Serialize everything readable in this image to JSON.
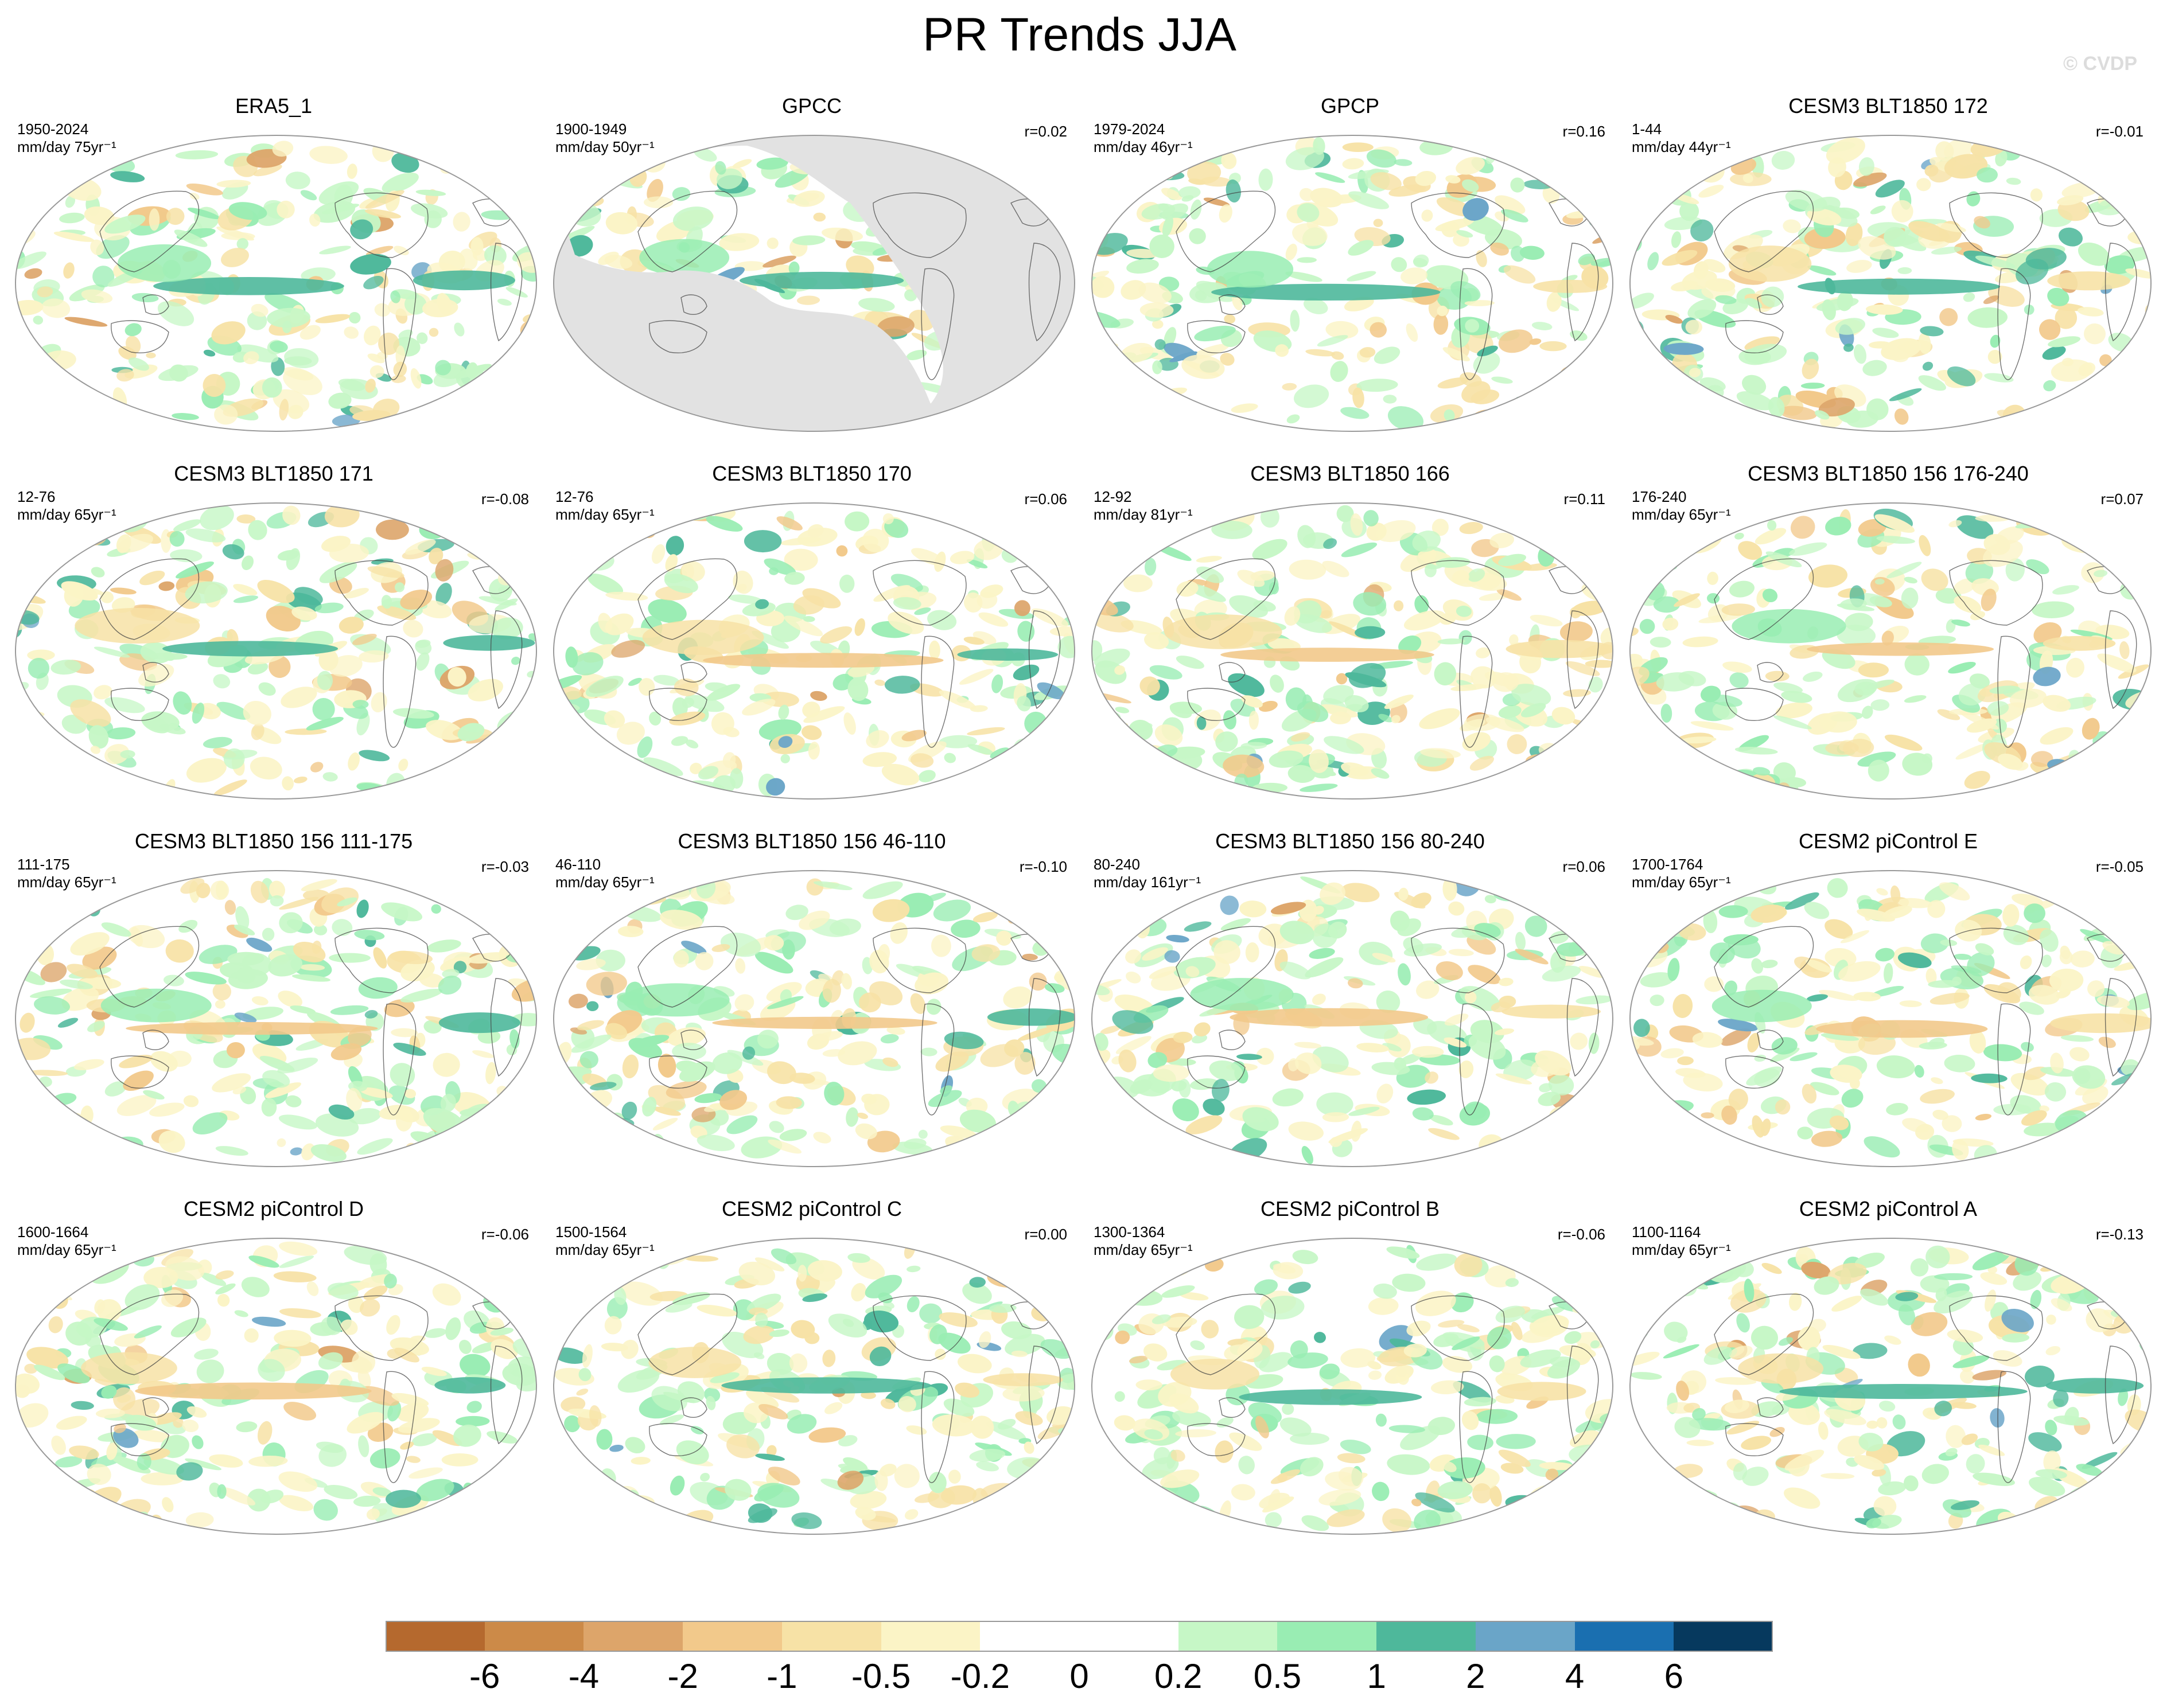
{
  "title": "PR Trends JJA",
  "credit": "© CVDP",
  "colors": {
    "ocean_mask": "#e2e2e2",
    "outline": "#999999",
    "coast": "#444444"
  },
  "panels": [
    {
      "title": "ERA5_1",
      "period": "1950-2024",
      "units": "mm/day 75yr⁻¹",
      "corr": "",
      "masked": false
    },
    {
      "title": "GPCC",
      "period": "1900-1949",
      "units": "mm/day 50yr⁻¹",
      "corr": "r=0.02",
      "masked": true
    },
    {
      "title": "GPCP",
      "period": "1979-2024",
      "units": "mm/day 46yr⁻¹",
      "corr": "r=0.16",
      "masked": false
    },
    {
      "title": "CESM3 BLT1850 172",
      "period": "1-44",
      "units": "mm/day 44yr⁻¹",
      "corr": "r=-0.01",
      "masked": false
    },
    {
      "title": "CESM3 BLT1850 171",
      "period": "12-76",
      "units": "mm/day 65yr⁻¹",
      "corr": "r=-0.08",
      "masked": false
    },
    {
      "title": "CESM3 BLT1850 170",
      "period": "12-76",
      "units": "mm/day 65yr⁻¹",
      "corr": "r=0.06",
      "masked": false
    },
    {
      "title": "CESM3 BLT1850 166",
      "period": "12-92",
      "units": "mm/day 81yr⁻¹",
      "corr": "r=0.11",
      "masked": false
    },
    {
      "title": "CESM3 BLT1850 156 176-240",
      "period": "176-240",
      "units": "mm/day 65yr⁻¹",
      "corr": "r=0.07",
      "masked": false
    },
    {
      "title": "CESM3 BLT1850 156 111-175",
      "period": "111-175",
      "units": "mm/day 65yr⁻¹",
      "corr": "r=-0.03",
      "masked": false
    },
    {
      "title": "CESM3 BLT1850 156 46-110",
      "period": "46-110",
      "units": "mm/day 65yr⁻¹",
      "corr": "r=-0.10",
      "masked": false
    },
    {
      "title": "CESM3 BLT1850 156 80-240",
      "period": "80-240",
      "units": "mm/day 161yr⁻¹",
      "corr": "r=0.06",
      "masked": false
    },
    {
      "title": "CESM2 piControl E",
      "period": "1700-1764",
      "units": "mm/day 65yr⁻¹",
      "corr": "r=-0.05",
      "masked": false
    },
    {
      "title": "CESM2 piControl D",
      "period": "1600-1664",
      "units": "mm/day 65yr⁻¹",
      "corr": "r=-0.06",
      "masked": false
    },
    {
      "title": "CESM2 piControl C",
      "period": "1500-1564",
      "units": "mm/day 65yr⁻¹",
      "corr": "r=0.00",
      "masked": false
    },
    {
      "title": "CESM2 piControl B",
      "period": "1300-1364",
      "units": "mm/day 65yr⁻¹",
      "corr": "r=-0.06",
      "masked": false
    },
    {
      "title": "CESM2 piControl A",
      "period": "1100-1164",
      "units": "mm/day 65yr⁻¹",
      "corr": "r=-0.13",
      "masked": false
    }
  ],
  "colorbar": {
    "colors": [
      "#b5692e",
      "#cc8a48",
      "#dda56a",
      "#f2c98b",
      "#f7e2a6",
      "#fbf4c6",
      "#ffffff",
      "#ffffff",
      "#c6f7c6",
      "#99edb3",
      "#4eb89b",
      "#6aa5c8",
      "#1a6fb0",
      "#06395e"
    ],
    "ticks": [
      "-6",
      "-4",
      "-2",
      "-1",
      "-0.5",
      "-0.2",
      "0",
      "0.2",
      "0.5",
      "1",
      "2",
      "4",
      "6"
    ]
  }
}
